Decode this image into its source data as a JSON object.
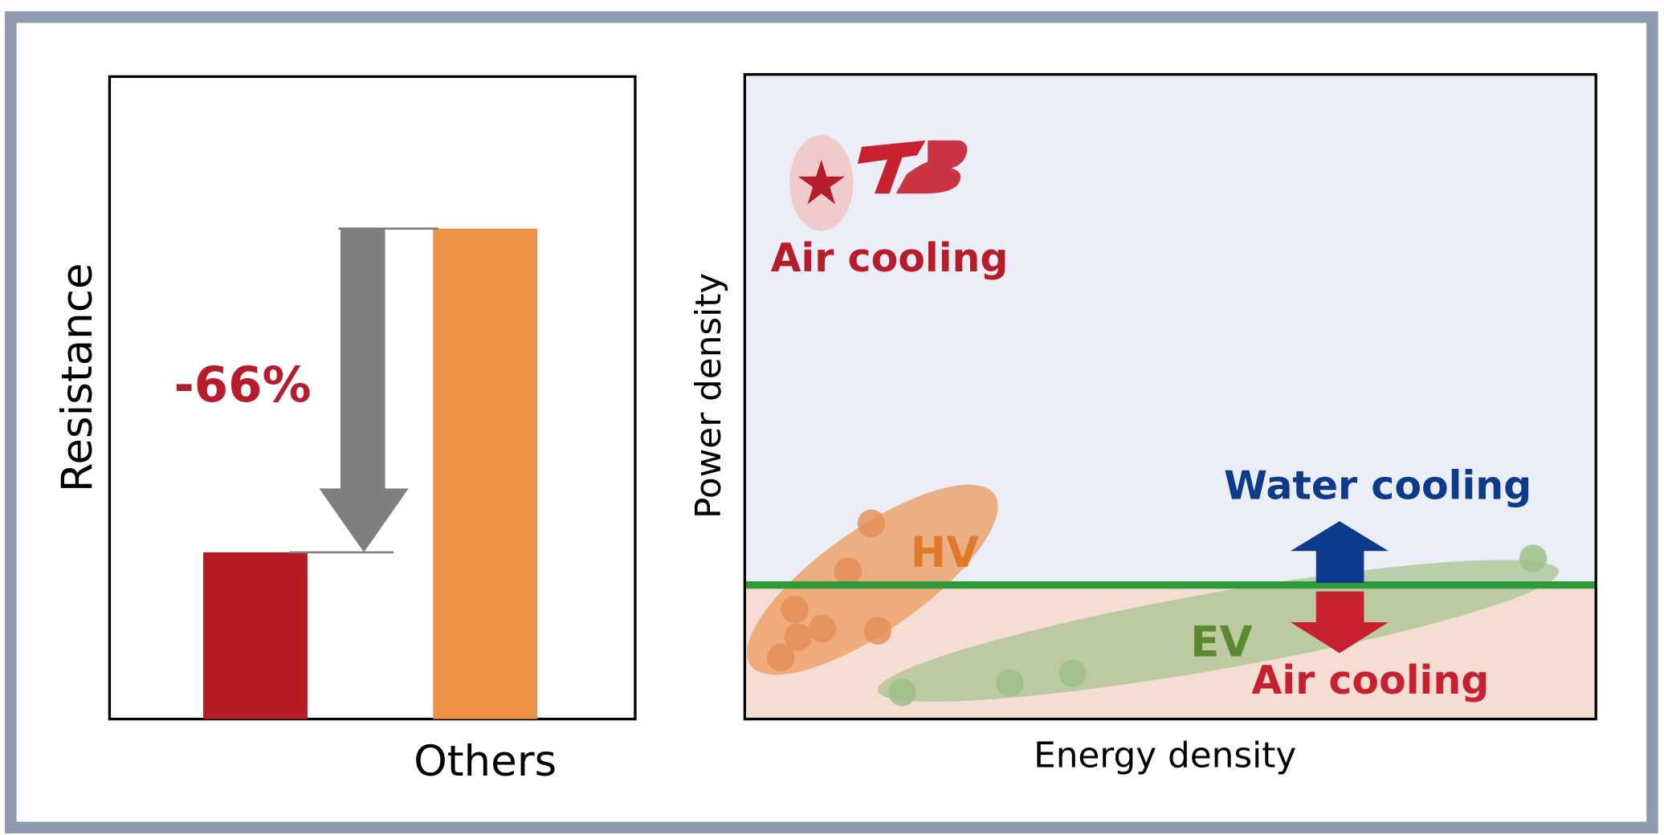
{
  "chart_data": {
    "type": "bar",
    "y_label": "Resistance",
    "categories": [
      null,
      "Others"
    ],
    "values": [
      34,
      100
    ],
    "colors": [
      "#b71c25",
      "#ee9248"
    ],
    "ylim": [
      0,
      131
    ],
    "annotation": "-66%"
  },
  "diagram": {
    "y_label": "Power density",
    "x_label": "Energy density",
    "top_label": "Air cooling",
    "hv_label": "HV",
    "ev_label": "EV",
    "water_label": "Water cooling",
    "air_label": "Air cooling"
  }
}
